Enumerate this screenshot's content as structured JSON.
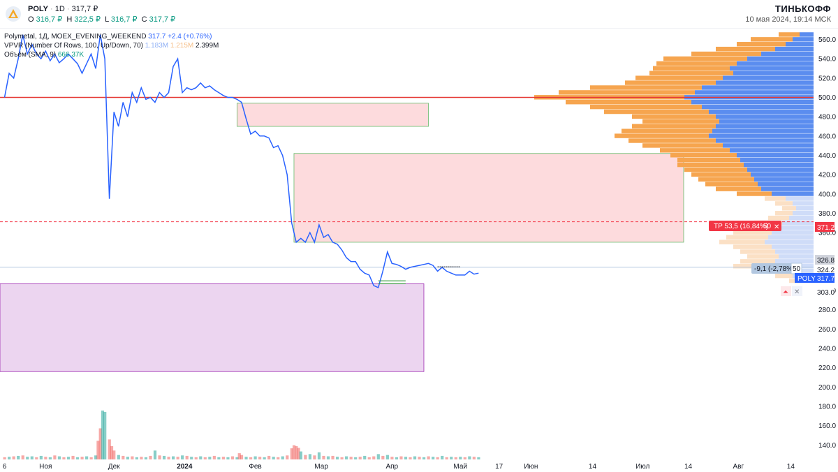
{
  "header": {
    "symbol": "POLY",
    "interval": "1D",
    "price": "317,7 ₽",
    "ohlc": [
      {
        "k": "O",
        "v": "316,7 ₽"
      },
      {
        "k": "H",
        "v": "322,5 ₽"
      },
      {
        "k": "L",
        "v": "316,7 ₽"
      },
      {
        "k": "C",
        "v": "317,7 ₽"
      }
    ],
    "brand": "ТИНЬКОФФ",
    "datetime": "10 мая 2024, 19:14 МСК"
  },
  "legend": {
    "main_name": "Polymetal, 1Д, MOEX_EVENING_WEEKEND",
    "main_price": "317.7",
    "main_change": "+2.4 (+0.76%)",
    "vpvr_name": "VPVR (Number Of Rows, 100, Up/Down, 70)",
    "vpvr_v1": "1.183M",
    "vpvr_v2": "1.215M",
    "vpvr_v3": "2.399M",
    "vol_name": "Объём (SMA, 9)",
    "vol_value": "666.37K"
  },
  "colors": {
    "line": "#2962ff",
    "resistance": "#e53935",
    "vol_up": "#26a69a",
    "vol_down": "#ef5350",
    "vp_up": "#5b8def",
    "vp_down": "#f6a54f",
    "tp_bg": "#f23645",
    "price_badge": "#2962ff"
  },
  "trade_labels": {
    "tp_text": "TP 53,5 (16,84%)",
    "tp_qty": "50",
    "sl_text": "-9,1 (-2,78%)",
    "sl_qty": "50",
    "tp_price": "371.2",
    "entry_price": "326.8",
    "sl_price": "324.2",
    "current_symbol": "POLY",
    "current_price": "317.7",
    "alert_price": "303.0"
  },
  "chart_data": {
    "type": "line",
    "ylim": [
      125,
      572
    ],
    "yticks": [
      140,
      160,
      180,
      200,
      220,
      240,
      260,
      280,
      300,
      320,
      340,
      360,
      380,
      400,
      420,
      440,
      460,
      480,
      500,
      520,
      540,
      560
    ],
    "ytick_labels": [
      "140.0",
      "160.0",
      "180.0",
      "200.0",
      "220.0",
      "240.0",
      "260.0",
      "280.0",
      "300.0",
      "",
      "",
      "360.0",
      "380.0",
      "400.0",
      "420.0",
      "440.0",
      "460.0",
      "480.0",
      "500.0",
      "520.0",
      "540.0",
      "560.0"
    ],
    "xticks": [
      {
        "label": "6",
        "x": 0
      },
      {
        "label": "Ноя",
        "x": 18
      },
      {
        "label": "Дек",
        "x": 48
      },
      {
        "label": "2024",
        "x": 79
      },
      {
        "label": "Фев",
        "x": 110
      },
      {
        "label": "Мар",
        "x": 139
      },
      {
        "label": "Апр",
        "x": 170
      },
      {
        "label": "Май",
        "x": 200
      },
      {
        "label": "17",
        "x": 217
      },
      {
        "label": "Июн",
        "x": 231
      },
      {
        "label": "14",
        "x": 258
      },
      {
        "label": "Июл",
        "x": 280
      },
      {
        "label": "14",
        "x": 300
      },
      {
        "label": "Авг",
        "x": 322
      },
      {
        "label": "14",
        "x": 345
      }
    ],
    "xlim": [
      -2,
      355
    ],
    "price_line": [
      [
        0,
        500
      ],
      [
        2,
        525
      ],
      [
        4,
        520
      ],
      [
        6,
        540
      ],
      [
        8,
        565
      ],
      [
        10,
        545
      ],
      [
        12,
        555
      ],
      [
        14,
        545
      ],
      [
        16,
        540
      ],
      [
        18,
        548
      ],
      [
        20,
        538
      ],
      [
        22,
        545
      ],
      [
        24,
        536
      ],
      [
        26,
        540
      ],
      [
        28,
        545
      ],
      [
        30,
        540
      ],
      [
        32,
        535
      ],
      [
        34,
        525
      ],
      [
        36,
        535
      ],
      [
        38,
        545
      ],
      [
        40,
        530
      ],
      [
        42,
        565
      ],
      [
        44,
        540
      ],
      [
        46,
        395
      ],
      [
        48,
        485
      ],
      [
        50,
        470
      ],
      [
        52,
        495
      ],
      [
        54,
        480
      ],
      [
        56,
        505
      ],
      [
        58,
        495
      ],
      [
        60,
        510
      ],
      [
        62,
        498
      ],
      [
        64,
        500
      ],
      [
        66,
        495
      ],
      [
        68,
        505
      ],
      [
        70,
        500
      ],
      [
        72,
        505
      ],
      [
        74,
        532
      ],
      [
        76,
        540
      ],
      [
        78,
        505
      ],
      [
        80,
        510
      ],
      [
        82,
        508
      ],
      [
        84,
        510
      ],
      [
        86,
        515
      ],
      [
        88,
        510
      ],
      [
        90,
        512
      ],
      [
        92,
        508
      ],
      [
        94,
        505
      ],
      [
        96,
        502
      ],
      [
        98,
        500
      ],
      [
        100,
        500
      ],
      [
        102,
        498
      ],
      [
        104,
        495
      ],
      [
        106,
        478
      ],
      [
        108,
        462
      ],
      [
        110,
        465
      ],
      [
        112,
        460
      ],
      [
        114,
        460
      ],
      [
        116,
        458
      ],
      [
        118,
        448
      ],
      [
        120,
        450
      ],
      [
        122,
        440
      ],
      [
        124,
        420
      ],
      [
        126,
        370
      ],
      [
        128,
        350
      ],
      [
        130,
        354
      ],
      [
        132,
        350
      ],
      [
        134,
        360
      ],
      [
        136,
        350
      ],
      [
        138,
        368
      ],
      [
        140,
        355
      ],
      [
        142,
        358
      ],
      [
        144,
        350
      ],
      [
        146,
        348
      ],
      [
        148,
        342
      ],
      [
        150,
        334
      ],
      [
        152,
        330
      ],
      [
        154,
        330
      ],
      [
        156,
        322
      ],
      [
        158,
        318
      ],
      [
        160,
        316
      ],
      [
        162,
        305
      ],
      [
        164,
        303
      ],
      [
        166,
        320
      ],
      [
        168,
        340
      ],
      [
        170,
        328
      ],
      [
        172,
        327
      ],
      [
        174,
        325
      ],
      [
        176,
        322
      ],
      [
        178,
        324
      ],
      [
        180,
        325
      ],
      [
        182,
        326
      ],
      [
        184,
        327
      ],
      [
        186,
        328
      ],
      [
        188,
        326
      ],
      [
        190,
        320
      ],
      [
        192,
        324
      ],
      [
        194,
        320
      ],
      [
        196,
        318
      ],
      [
        198,
        316
      ],
      [
        200,
        316
      ],
      [
        202,
        316
      ],
      [
        204,
        320
      ],
      [
        206,
        317
      ],
      [
        208,
        318
      ]
    ],
    "resistance": 500,
    "tp_level": 371.2,
    "entry_level": 326.8,
    "sl_level": 324.2,
    "zones": [
      {
        "color": "pink",
        "x0": 102,
        "x1": 186,
        "y0": 470,
        "y1": 494
      },
      {
        "color": "pink",
        "x0": 127,
        "x1": 298,
        "y0": 350,
        "y1": 442
      },
      {
        "color": "purple",
        "x0": -2,
        "x1": 184,
        "y0": 216,
        "y1": 307
      }
    ],
    "volume_bars": [
      [
        0,
        5,
        0
      ],
      [
        2,
        6,
        1
      ],
      [
        4,
        7,
        0
      ],
      [
        6,
        8,
        1
      ],
      [
        8,
        9,
        0
      ],
      [
        10,
        6,
        1
      ],
      [
        12,
        7,
        1
      ],
      [
        14,
        5,
        0
      ],
      [
        16,
        8,
        1
      ],
      [
        18,
        6,
        0
      ],
      [
        20,
        5,
        1
      ],
      [
        22,
        9,
        0
      ],
      [
        24,
        7,
        1
      ],
      [
        26,
        5,
        0
      ],
      [
        28,
        6,
        1
      ],
      [
        30,
        8,
        0
      ],
      [
        32,
        5,
        1
      ],
      [
        34,
        6,
        0
      ],
      [
        36,
        7,
        1
      ],
      [
        38,
        5,
        0
      ],
      [
        40,
        9,
        1
      ],
      [
        41,
        42,
        0
      ],
      [
        42,
        70,
        0
      ],
      [
        43,
        110,
        1
      ],
      [
        44,
        107,
        1
      ],
      [
        46,
        45,
        0
      ],
      [
        47,
        30,
        0
      ],
      [
        48,
        20,
        0
      ],
      [
        50,
        10,
        1
      ],
      [
        52,
        8,
        0
      ],
      [
        54,
        6,
        1
      ],
      [
        56,
        7,
        0
      ],
      [
        58,
        5,
        1
      ],
      [
        60,
        6,
        0
      ],
      [
        62,
        5,
        1
      ],
      [
        64,
        8,
        0
      ],
      [
        66,
        20,
        1
      ],
      [
        68,
        9,
        0
      ],
      [
        70,
        8,
        1
      ],
      [
        72,
        6,
        0
      ],
      [
        74,
        7,
        1
      ],
      [
        76,
        6,
        0
      ],
      [
        78,
        9,
        1
      ],
      [
        80,
        8,
        0
      ],
      [
        82,
        6,
        1
      ],
      [
        84,
        5,
        0
      ],
      [
        86,
        7,
        1
      ],
      [
        88,
        5,
        0
      ],
      [
        90,
        6,
        1
      ],
      [
        92,
        8,
        0
      ],
      [
        94,
        5,
        1
      ],
      [
        96,
        6,
        0
      ],
      [
        98,
        5,
        1
      ],
      [
        100,
        7,
        0
      ],
      [
        102,
        5,
        1
      ],
      [
        103,
        14,
        0
      ],
      [
        104,
        10,
        0
      ],
      [
        106,
        6,
        1
      ],
      [
        108,
        5,
        0
      ],
      [
        110,
        7,
        1
      ],
      [
        112,
        6,
        0
      ],
      [
        114,
        5,
        1
      ],
      [
        116,
        8,
        0
      ],
      [
        118,
        6,
        1
      ],
      [
        120,
        5,
        0
      ],
      [
        122,
        7,
        1
      ],
      [
        124,
        9,
        0
      ],
      [
        126,
        25,
        0
      ],
      [
        127,
        32,
        0
      ],
      [
        128,
        30,
        0
      ],
      [
        129,
        26,
        0
      ],
      [
        130,
        18,
        1
      ],
      [
        132,
        10,
        0
      ],
      [
        134,
        12,
        1
      ],
      [
        136,
        9,
        0
      ],
      [
        138,
        16,
        1
      ],
      [
        140,
        8,
        0
      ],
      [
        142,
        7,
        1
      ],
      [
        144,
        8,
        0
      ],
      [
        146,
        6,
        1
      ],
      [
        148,
        5,
        0
      ],
      [
        150,
        7,
        1
      ],
      [
        152,
        6,
        0
      ],
      [
        154,
        5,
        1
      ],
      [
        156,
        6,
        0
      ],
      [
        158,
        8,
        1
      ],
      [
        160,
        5,
        0
      ],
      [
        162,
        7,
        0
      ],
      [
        164,
        12,
        1
      ],
      [
        166,
        8,
        0
      ],
      [
        168,
        10,
        1
      ],
      [
        170,
        6,
        0
      ],
      [
        172,
        5,
        1
      ],
      [
        174,
        7,
        0
      ],
      [
        176,
        6,
        1
      ],
      [
        178,
        5,
        0
      ],
      [
        180,
        7,
        1
      ],
      [
        182,
        6,
        0
      ],
      [
        184,
        5,
        1
      ],
      [
        186,
        7,
        0
      ],
      [
        188,
        6,
        1
      ],
      [
        190,
        5,
        0
      ],
      [
        192,
        8,
        1
      ],
      [
        194,
        5,
        0
      ],
      [
        196,
        6,
        1
      ],
      [
        198,
        5,
        0
      ],
      [
        200,
        6,
        1
      ],
      [
        202,
        5,
        0
      ],
      [
        204,
        7,
        1
      ],
      [
        206,
        6,
        0
      ],
      [
        208,
        5,
        1
      ]
    ],
    "volume_max": 220,
    "volume_profile_rows": [
      [
        565,
        20,
        30
      ],
      [
        560,
        30,
        60
      ],
      [
        555,
        40,
        70
      ],
      [
        550,
        55,
        85
      ],
      [
        545,
        75,
        100
      ],
      [
        540,
        95,
        120
      ],
      [
        535,
        110,
        115
      ],
      [
        530,
        120,
        110
      ],
      [
        525,
        115,
        120
      ],
      [
        520,
        130,
        125
      ],
      [
        515,
        140,
        130
      ],
      [
        510,
        160,
        160
      ],
      [
        505,
        170,
        195
      ],
      [
        500,
        185,
        215
      ],
      [
        495,
        175,
        180
      ],
      [
        490,
        160,
        160
      ],
      [
        485,
        150,
        150
      ],
      [
        480,
        140,
        120
      ],
      [
        475,
        135,
        110
      ],
      [
        470,
        140,
        120
      ],
      [
        465,
        145,
        130
      ],
      [
        460,
        150,
        135
      ],
      [
        455,
        140,
        125
      ],
      [
        450,
        130,
        115
      ],
      [
        445,
        120,
        100
      ],
      [
        440,
        110,
        95
      ],
      [
        435,
        105,
        90
      ],
      [
        430,
        100,
        95
      ],
      [
        425,
        95,
        90
      ],
      [
        420,
        90,
        85
      ],
      [
        415,
        85,
        80
      ],
      [
        410,
        80,
        75
      ],
      [
        405,
        75,
        65
      ],
      [
        400,
        60,
        50
      ],
      [
        395,
        40,
        30
      ],
      [
        390,
        30,
        25
      ],
      [
        385,
        25,
        20
      ],
      [
        380,
        30,
        25
      ],
      [
        375,
        35,
        30
      ],
      [
        370,
        45,
        40
      ],
      [
        365,
        50,
        45
      ],
      [
        360,
        60,
        55
      ],
      [
        355,
        65,
        60
      ],
      [
        350,
        70,
        65
      ],
      [
        345,
        60,
        55
      ],
      [
        340,
        55,
        50
      ],
      [
        335,
        50,
        45
      ],
      [
        330,
        55,
        50
      ],
      [
        325,
        60,
        55
      ],
      [
        320,
        45,
        40
      ],
      [
        315,
        30,
        25
      ],
      [
        310,
        20,
        15
      ]
    ]
  }
}
